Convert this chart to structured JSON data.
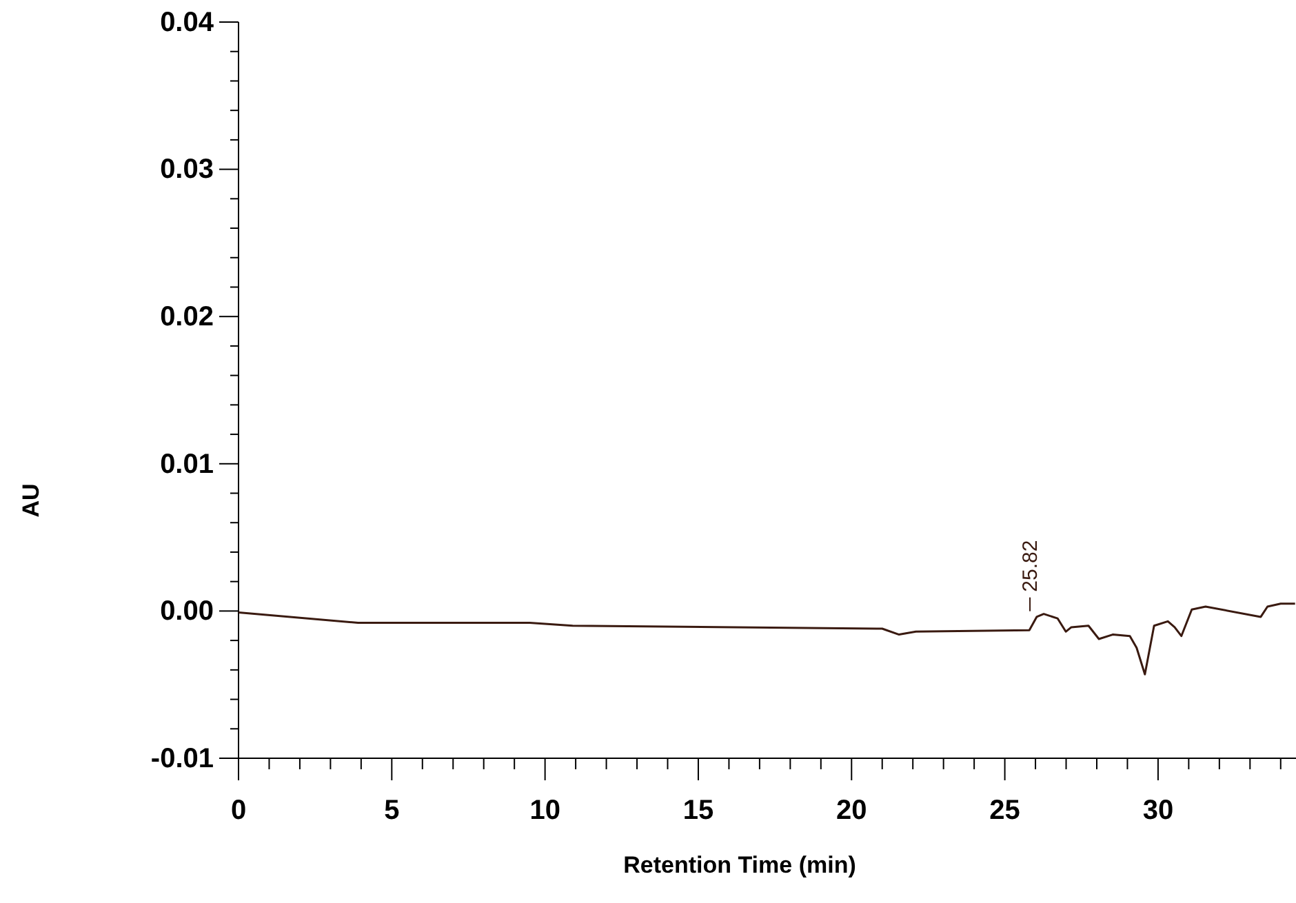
{
  "chart_data": {
    "type": "line",
    "xlabel": "Retention Time (min)",
    "ylabel": "AU",
    "xlim": [
      0,
      34.5
    ],
    "ylim": [
      -0.01,
      0.04
    ],
    "xticks": [
      0,
      {
        "value": 1,
        "label": null
      },
      {
        "value": 2,
        "label": null
      },
      {
        "value": 3,
        "label": null
      },
      {
        "value": 4,
        "label": null
      },
      5,
      {
        "value": 6,
        "label": null
      },
      {
        "value": 7,
        "label": null
      },
      {
        "value": 8,
        "label": null
      },
      {
        "value": 9,
        "label": null
      },
      10,
      {
        "value": 11,
        "label": null
      },
      {
        "value": 12,
        "label": null
      },
      {
        "value": 13,
        "label": null
      },
      {
        "value": 14,
        "label": null
      },
      15,
      {
        "value": 16,
        "label": null
      },
      {
        "value": 17,
        "label": null
      },
      {
        "value": 18,
        "label": null
      },
      {
        "value": 19,
        "label": null
      },
      20,
      {
        "value": 21,
        "label": null
      },
      {
        "value": 22,
        "label": null
      },
      {
        "value": 23,
        "label": null
      },
      {
        "value": 24,
        "label": null
      },
      25,
      {
        "value": 26,
        "label": null
      },
      {
        "value": 27,
        "label": null
      },
      {
        "value": 28,
        "label": null
      },
      {
        "value": 29,
        "label": null
      },
      30,
      {
        "value": 31,
        "label": null
      },
      {
        "value": 32,
        "label": null
      },
      {
        "value": 33,
        "label": null
      },
      {
        "value": 34,
        "label": null
      }
    ],
    "yticks": [
      {
        "value": -0.01,
        "label": "-0.01"
      },
      {
        "value": -0.008,
        "label": null
      },
      {
        "value": -0.006,
        "label": null
      },
      {
        "value": -0.004,
        "label": null
      },
      {
        "value": -0.002,
        "label": null
      },
      {
        "value": 0,
        "label": "0.00"
      },
      {
        "value": 0.002,
        "label": null
      },
      {
        "value": 0.004,
        "label": null
      },
      {
        "value": 0.006,
        "label": null
      },
      {
        "value": 0.008,
        "label": null
      },
      {
        "value": 0.01,
        "label": "0.01"
      },
      {
        "value": 0.012,
        "label": null
      },
      {
        "value": 0.014,
        "label": null
      },
      {
        "value": 0.016,
        "label": null
      },
      {
        "value": 0.018,
        "label": null
      },
      {
        "value": 0.02,
        "label": "0.02"
      },
      {
        "value": 0.022,
        "label": null
      },
      {
        "value": 0.024,
        "label": null
      },
      {
        "value": 0.026,
        "label": null
      },
      {
        "value": 0.028,
        "label": null
      },
      {
        "value": 0.03,
        "label": "0.03"
      },
      {
        "value": 0.032,
        "label": null
      },
      {
        "value": 0.034,
        "label": null
      },
      {
        "value": 0.036,
        "label": null
      },
      {
        "value": 0.038,
        "label": null
      },
      {
        "value": 0.04,
        "label": "0.04"
      }
    ],
    "grid": false,
    "marker": "none",
    "line_style": "solid",
    "x": [
      0,
      3.9,
      9.5,
      10.9,
      21.0,
      21.55,
      22.1,
      25.8,
      26.04,
      26.27,
      26.72,
      26.99,
      27.17,
      27.73,
      28.07,
      28.52,
      29.08,
      29.3,
      29.57,
      29.87,
      30.32,
      30.54,
      30.76,
      31.1,
      31.55,
      33.35,
      33.57,
      34.0,
      34.47
    ],
    "series": [
      {
        "color": "#3a1a10",
        "values": [
          -0.0001,
          -0.0008,
          -0.0008,
          -0.001,
          -0.0012,
          -0.0016,
          -0.0014,
          -0.0013,
          -0.0004,
          -0.0002,
          -0.0005,
          -0.0014,
          -0.0011,
          -0.001,
          -0.0019,
          -0.0016,
          -0.0017,
          -0.0025,
          -0.0043,
          -0.001,
          -0.0007,
          -0.0011,
          -0.0017,
          0.0001,
          0.0003,
          -0.0004,
          0.0003,
          0.0005,
          0.0005
        ]
      }
    ],
    "annotations": [
      {
        "text": "25.82",
        "x": 25.82,
        "y": -0.0002
      }
    ]
  }
}
